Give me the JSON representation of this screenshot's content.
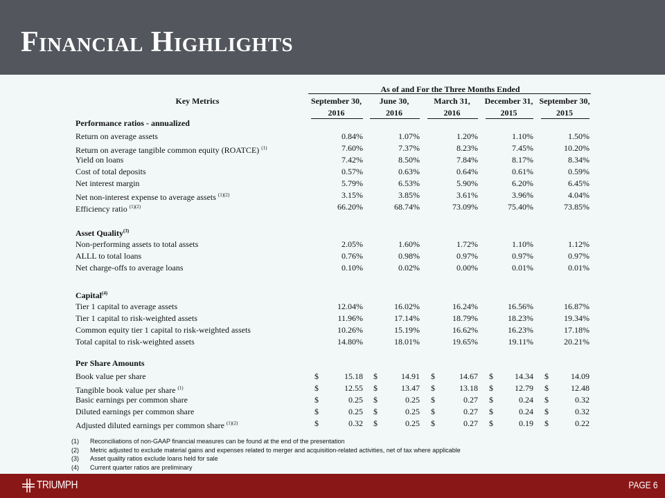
{
  "title": "Financial Highlights",
  "table": {
    "key_metrics_header": "Key Metrics",
    "group_header": "As of and For the Three Months Ended",
    "columns": [
      {
        "line1": "September 30,",
        "line2": "2016"
      },
      {
        "line1": "June 30,",
        "line2": "2016"
      },
      {
        "line1": "March 31,",
        "line2": "2016"
      },
      {
        "line1": "December 31,",
        "line2": "2015"
      },
      {
        "line1": "September 30,",
        "line2": "2015"
      }
    ],
    "sections": [
      {
        "title": "Performance ratios - annualized",
        "sup": "",
        "rows": [
          {
            "label": "Return on average assets",
            "sup": "",
            "values": [
              "0.84%",
              "1.07%",
              "1.20%",
              "1.10%",
              "1.50%"
            ]
          },
          {
            "label": "Return on average tangible common equity (ROATCE)",
            "sup": "(1)",
            "values": [
              "7.60%",
              "7.37%",
              "8.23%",
              "7.45%",
              "10.20%"
            ]
          },
          {
            "label": "Yield on loans",
            "sup": "",
            "values": [
              "7.42%",
              "8.50%",
              "7.84%",
              "8.17%",
              "8.34%"
            ]
          },
          {
            "label": "Cost of total deposits",
            "sup": "",
            "values": [
              "0.57%",
              "0.63%",
              "0.64%",
              "0.61%",
              "0.59%"
            ]
          },
          {
            "label": "Net interest margin",
            "sup": "",
            "values": [
              "5.79%",
              "6.53%",
              "5.90%",
              "6.20%",
              "6.45%"
            ]
          },
          {
            "label": "Net non-interest expense to average assets",
            "sup": "(1)(2)",
            "values": [
              "3.15%",
              "3.85%",
              "3.61%",
              "3.96%",
              "4.04%"
            ]
          },
          {
            "label": "Efficiency ratio",
            "sup": "(1)(2)",
            "values": [
              "66.20%",
              "68.74%",
              "73.09%",
              "75.40%",
              "73.85%"
            ]
          }
        ]
      },
      {
        "title": "Asset Quality",
        "sup": "(3)",
        "rows": [
          {
            "label": "Non-performing assets to total assets",
            "sup": "",
            "values": [
              "2.05%",
              "1.60%",
              "1.72%",
              "1.10%",
              "1.12%"
            ]
          },
          {
            "label": "ALLL to total loans",
            "sup": "",
            "values": [
              "0.76%",
              "0.98%",
              "0.97%",
              "0.97%",
              "0.97%"
            ]
          },
          {
            "label": "Net charge-offs to average loans",
            "sup": "",
            "values": [
              "0.10%",
              "0.02%",
              "0.00%",
              "0.01%",
              "0.01%"
            ]
          }
        ]
      },
      {
        "title": "Capital",
        "sup": "(4)",
        "rows": [
          {
            "label": "Tier 1 capital to average assets",
            "sup": "",
            "values": [
              "12.04%",
              "16.02%",
              "16.24%",
              "16.56%",
              "16.87%"
            ]
          },
          {
            "label": "Tier 1 capital to risk-weighted assets",
            "sup": "",
            "values": [
              "11.96%",
              "17.14%",
              "18.79%",
              "18.23%",
              "19.34%"
            ]
          },
          {
            "label": "Common equity tier 1 capital to risk-weighted assets",
            "sup": "",
            "values": [
              "10.26%",
              "15.19%",
              "16.62%",
              "16.23%",
              "17.18%"
            ]
          },
          {
            "label": "Total capital to risk-weighted assets",
            "sup": "",
            "values": [
              "14.80%",
              "18.01%",
              "19.65%",
              "19.11%",
              "20.21%"
            ]
          }
        ]
      },
      {
        "title": "Per Share Amounts",
        "sup": "",
        "currency": "$",
        "rows": [
          {
            "label": "Book value per share",
            "sup": "",
            "values": [
              "15.18",
              "14.91",
              "14.67",
              "14.34",
              "14.09"
            ]
          },
          {
            "label": "Tangible book value per share",
            "sup": "(1)",
            "values": [
              "12.55",
              "13.47",
              "13.18",
              "12.79",
              "12.48"
            ]
          },
          {
            "label": "Basic earnings per common share",
            "sup": "",
            "values": [
              "0.25",
              "0.25",
              "0.27",
              "0.24",
              "0.32"
            ]
          },
          {
            "label": "Diluted earnings per common share",
            "sup": "",
            "values": [
              "0.25",
              "0.25",
              "0.27",
              "0.24",
              "0.32"
            ]
          },
          {
            "label": "Adjusted diluted earnings per common share",
            "sup": "(1)(2)",
            "values": [
              "0.32",
              "0.25",
              "0.27",
              "0.19",
              "0.22"
            ]
          }
        ]
      }
    ]
  },
  "footnotes": [
    {
      "num": "(1)",
      "text": "Reconciliations of non-GAAP financial measures can be found at the end of the presentation"
    },
    {
      "num": "(2)",
      "text": "Metric adjusted to exclude material gains and expenses related to merger and acquisition-related activities, net of tax where applicable"
    },
    {
      "num": "(3)",
      "text": "Asset quality ratios exclude loans held for sale"
    },
    {
      "num": "(4)",
      "text": "Current quarter ratios are preliminary"
    }
  ],
  "footer": {
    "logo_text": "TRIUMPH",
    "page_label": "PAGE 6"
  },
  "colors": {
    "header_bg": "#54565e",
    "footer_bg": "#8a1717",
    "page_bg": "#f2f8f8"
  }
}
